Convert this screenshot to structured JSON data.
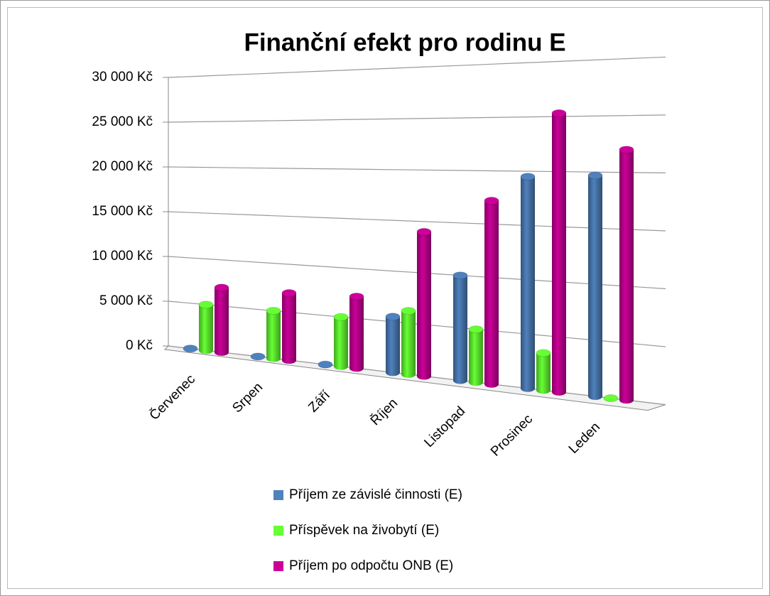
{
  "chart_data": {
    "type": "bar3d",
    "title": "Finanční efekt pro rodinu E",
    "categories": [
      "Červenec",
      "Srpen",
      "Září",
      "Říjen",
      "Listopad",
      "Prosinec",
      "Leden"
    ],
    "series": [
      {
        "name": "Příjem ze závislé činnosti (E)",
        "color": "#4f81bd",
        "values": [
          0,
          0,
          0,
          5500,
          10000,
          19500,
          19700
        ]
      },
      {
        "name": "Příspěvek na živobytí (E)",
        "color": "#66ff33",
        "values": [
          5000,
          5000,
          5000,
          6200,
          5000,
          3400,
          0
        ]
      },
      {
        "name": "Příjem po odpočtu ONB (E)",
        "color": "#cc0099",
        "values": [
          7000,
          7000,
          7200,
          14000,
          17200,
          25300,
          22000
        ]
      }
    ],
    "ylim": [
      0,
      30000
    ],
    "yticks": [
      {
        "value": 0,
        "label": "0 Kč"
      },
      {
        "value": 5000,
        "label": "5 000 Kč"
      },
      {
        "value": 10000,
        "label": "10 000 Kč"
      },
      {
        "value": 15000,
        "label": "15 000 Kč"
      },
      {
        "value": 20000,
        "label": "20 000 Kč"
      },
      {
        "value": 25000,
        "label": "25 000 Kč"
      },
      {
        "value": 30000,
        "label": "30 000 Kč"
      }
    ],
    "grid": true,
    "legend": "bottom"
  }
}
